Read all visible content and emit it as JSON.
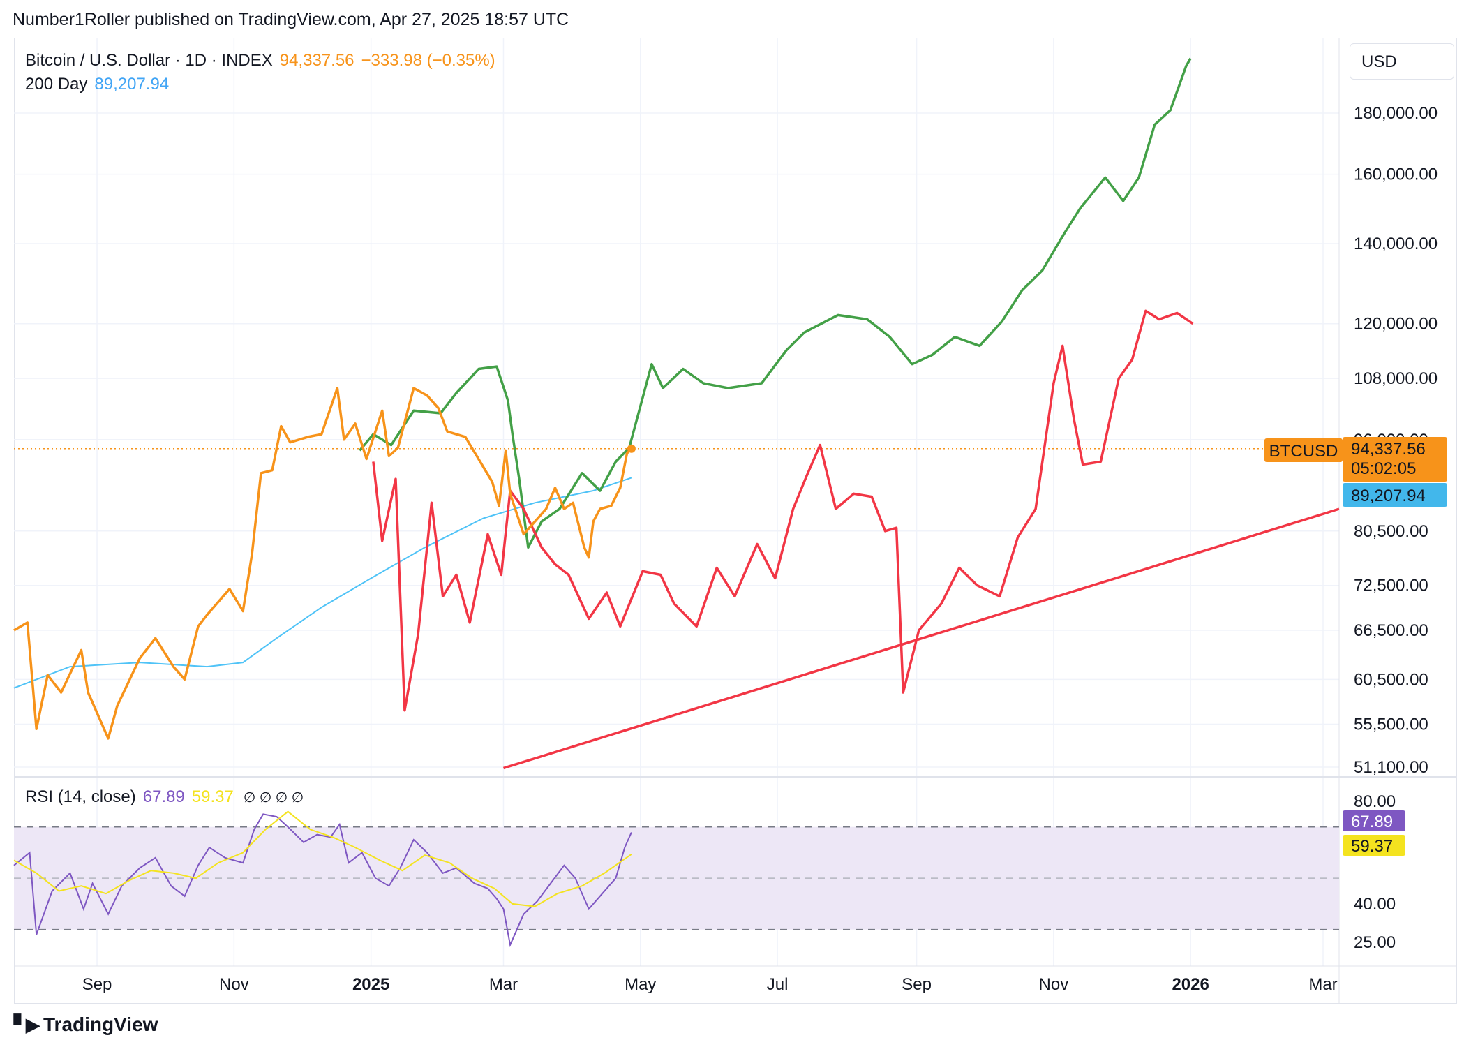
{
  "header": {
    "publisher": "Number1Roller published on TradingView.com, Apr 27, 2025 18:57 UTC"
  },
  "legend": {
    "symbol": "Bitcoin / U.S. Dollar · 1D · INDEX",
    "price": "94,337.56",
    "change": "−333.98 (−0.35%)",
    "ma_label": "200 Day",
    "ma_value": "89,207.94"
  },
  "currency": "USD",
  "price_badges": {
    "symbol": "BTCUSD",
    "price": "94,337.56",
    "countdown": "05:02:05",
    "ma": "89,207.94"
  },
  "rsi": {
    "label": "RSI (14, close)",
    "value": "67.89",
    "ma_value": "59.37",
    "icons": "∅ ∅ ∅ ∅"
  },
  "footer": {
    "brand": "TradingView"
  },
  "colors": {
    "btc_line": "#f7931a",
    "ma_line": "#4fc3f7",
    "projection_up": "#43a047",
    "projection_down": "#f23645",
    "trendline": "#f23645",
    "rsi_line": "#7e57c2",
    "rsi_ma": "#f4e31f",
    "rsi_band": "#ede7f6"
  },
  "chart_data": [
    {
      "type": "line",
      "scale": "log",
      "x_axis_ticks": [
        "Sep",
        "Nov",
        "2025",
        "Mar",
        "May",
        "Jul",
        "Sep",
        "Nov",
        "2026",
        "Mar"
      ],
      "y_axis_ticks": [
        "180,000.00",
        "160,000.00",
        "140,000.00",
        "120,000.00",
        "108,000.00",
        "96,000.00",
        "80,500.00",
        "72,500.00",
        "66,500.00",
        "60,500.00",
        "55,500.00",
        "51,100.00"
      ],
      "current_price": 94337.56,
      "series": [
        {
          "key": "btc",
          "x": [
            "2024-07-26",
            "2024-08-01",
            "2024-08-05",
            "2024-08-10",
            "2024-08-16",
            "2024-08-25",
            "2024-08-28",
            "2024-09-06",
            "2024-09-10",
            "2024-09-20",
            "2024-09-27",
            "2024-10-05",
            "2024-10-10",
            "2024-10-16",
            "2024-10-20",
            "2024-10-30",
            "2024-11-05",
            "2024-11-09",
            "2024-11-13",
            "2024-11-18",
            "2024-11-22",
            "2024-11-26",
            "2024-12-04",
            "2024-12-10",
            "2024-12-17",
            "2024-12-20",
            "2024-12-25",
            "2024-12-30",
            "2025-01-06",
            "2025-01-09",
            "2025-01-13",
            "2025-01-20",
            "2025-01-26",
            "2025-01-31",
            "2025-02-04",
            "2025-02-12",
            "2025-02-24",
            "2025-02-27",
            "2025-03-02",
            "2025-03-04",
            "2025-03-10",
            "2025-03-20",
            "2025-03-24",
            "2025-03-28",
            "2025-04-01",
            "2025-04-06",
            "2025-04-08",
            "2025-04-10",
            "2025-04-13",
            "2025-04-18",
            "2025-04-22",
            "2025-04-25",
            "2025-04-27"
          ],
          "y": [
            66500,
            67500,
            55000,
            61000,
            59000,
            64000,
            59000,
            54000,
            57500,
            63000,
            65500,
            62000,
            60500,
            67000,
            68500,
            72000,
            69000,
            77000,
            90000,
            90500,
            98500,
            95500,
            96500,
            97000,
            106000,
            96000,
            99000,
            92500,
            101500,
            93000,
            94500,
            106000,
            104500,
            102000,
            97500,
            96500,
            88500,
            84500,
            94000,
            86500,
            80000,
            84000,
            87500,
            84000,
            85000,
            78000,
            76500,
            82000,
            84000,
            84500,
            87500,
            93500,
            94337.56
          ]
        },
        {
          "key": "ma200",
          "x": [
            "2024-07-26",
            "2024-08-20",
            "2024-09-20",
            "2024-10-20",
            "2024-11-05",
            "2024-11-20",
            "2024-12-10",
            "2025-01-01",
            "2025-01-25",
            "2025-02-20",
            "2025-03-15",
            "2025-04-10",
            "2025-04-27"
          ],
          "y": [
            59500,
            62000,
            62500,
            62000,
            62500,
            65500,
            69500,
            73500,
            78000,
            82500,
            85000,
            87000,
            89207.94
          ]
        },
        {
          "key": "projection_bull",
          "x": [
            "2024-12-27",
            "2025-01-02",
            "2025-01-10",
            "2025-01-20",
            "2025-02-01",
            "2025-02-08",
            "2025-02-18",
            "2025-02-26",
            "2025-03-03",
            "2025-03-05",
            "2025-03-08",
            "2025-03-12",
            "2025-03-18",
            "2025-03-26",
            "2025-04-05",
            "2025-04-13",
            "2025-04-20",
            "2025-04-26",
            "2025-05-06",
            "2025-05-11",
            "2025-05-20",
            "2025-05-29",
            "2025-06-09",
            "2025-06-24",
            "2025-07-05",
            "2025-07-13",
            "2025-07-28",
            "2025-08-10",
            "2025-08-20",
            "2025-08-30",
            "2025-09-08",
            "2025-09-18",
            "2025-09-29",
            "2025-10-09",
            "2025-10-18",
            "2025-10-27",
            "2025-11-06",
            "2025-11-13",
            "2025-11-24",
            "2025-12-02",
            "2025-12-09",
            "2025-12-16",
            "2025-12-23",
            "2025-12-30",
            "2026-01-01"
          ],
          "y": [
            94000,
            97000,
            95000,
            101500,
            101000,
            105000,
            110000,
            110500,
            103500,
            97000,
            89000,
            78000,
            82000,
            84000,
            90000,
            87000,
            92000,
            94500,
            111000,
            106000,
            110000,
            107000,
            106000,
            107000,
            114000,
            118000,
            122000,
            121000,
            117000,
            111000,
            113000,
            117000,
            115000,
            120500,
            128000,
            133000,
            143000,
            150000,
            159000,
            152000,
            159000,
            176000,
            181000,
            197000,
            200000
          ]
        },
        {
          "key": "projection_bear",
          "x": [
            "2025-01-02",
            "2025-01-06",
            "2025-01-12",
            "2025-01-16",
            "2025-01-22",
            "2025-01-28",
            "2025-02-02",
            "2025-02-08",
            "2025-02-14",
            "2025-02-22",
            "2025-02-28",
            "2025-03-04",
            "2025-03-10",
            "2025-03-18",
            "2025-03-24",
            "2025-03-30",
            "2025-04-08",
            "2025-04-16",
            "2025-04-22",
            "2025-05-02",
            "2025-05-10",
            "2025-05-16",
            "2025-05-26",
            "2025-06-04",
            "2025-06-12",
            "2025-06-22",
            "2025-06-30",
            "2025-07-08",
            "2025-07-14",
            "2025-07-20",
            "2025-07-27",
            "2025-08-04",
            "2025-08-12",
            "2025-08-18",
            "2025-08-23",
            "2025-08-26",
            "2025-09-02",
            "2025-09-12",
            "2025-09-20",
            "2025-09-28",
            "2025-10-08",
            "2025-10-16",
            "2025-10-24",
            "2025-11-01",
            "2025-11-05",
            "2025-11-10",
            "2025-11-14",
            "2025-11-22",
            "2025-11-30",
            "2025-12-06",
            "2025-12-12",
            "2025-12-18",
            "2025-12-26",
            "2026-01-02"
          ],
          "y": [
            92000,
            79000,
            89000,
            57000,
            66000,
            85000,
            71000,
            74000,
            67500,
            80000,
            74000,
            87000,
            84000,
            78000,
            75500,
            74000,
            68000,
            71500,
            67000,
            74500,
            74000,
            70000,
            67000,
            75000,
            71000,
            78500,
            73500,
            84000,
            89500,
            95000,
            84000,
            86500,
            86000,
            80500,
            81000,
            59000,
            66500,
            70000,
            75000,
            72500,
            71000,
            79500,
            84000,
            107000,
            115000,
            100000,
            91500,
            92000,
            108000,
            112000,
            123000,
            121000,
            122500,
            120000
          ]
        }
      ],
      "trendline": {
        "x": [
          "2025-03-01",
          "2026-03-31"
        ],
        "y": [
          51000,
          84000
        ]
      }
    },
    {
      "type": "line",
      "title": "RSI (14, close)",
      "y_axis_ticks": [
        "80.00",
        "40.00",
        "25.00"
      ],
      "band": [
        30,
        70
      ],
      "mid": 50,
      "series": [
        {
          "key": "rsi",
          "x": [
            "2024-07-26",
            "2024-08-02",
            "2024-08-05",
            "2024-08-12",
            "2024-08-20",
            "2024-08-26",
            "2024-08-30",
            "2024-09-06",
            "2024-09-12",
            "2024-09-20",
            "2024-09-27",
            "2024-10-04",
            "2024-10-10",
            "2024-10-16",
            "2024-10-21",
            "2024-10-28",
            "2024-11-05",
            "2024-11-10",
            "2024-11-14",
            "2024-11-20",
            "2024-11-25",
            "2024-12-02",
            "2024-12-08",
            "2024-12-14",
            "2024-12-18",
            "2024-12-22",
            "2024-12-28",
            "2025-01-03",
            "2025-01-09",
            "2025-01-14",
            "2025-01-20",
            "2025-01-26",
            "2025-02-02",
            "2025-02-08",
            "2025-02-16",
            "2025-02-22",
            "2025-02-26",
            "2025-03-01",
            "2025-03-04",
            "2025-03-10",
            "2025-03-16",
            "2025-03-22",
            "2025-03-28",
            "2025-04-02",
            "2025-04-08",
            "2025-04-14",
            "2025-04-20",
            "2025-04-24",
            "2025-04-27"
          ],
          "y": [
            55,
            60,
            28,
            45,
            52,
            38,
            48,
            36,
            47,
            54,
            58,
            47,
            43,
            55,
            62,
            58,
            56,
            69,
            75,
            74,
            70,
            64,
            67,
            66,
            71,
            56,
            60,
            50,
            47,
            54,
            65,
            60,
            52,
            54,
            48,
            46,
            42,
            38,
            24,
            36,
            41,
            48,
            55,
            50,
            38,
            44,
            50,
            62,
            67.89
          ]
        },
        {
          "key": "rsi_ma",
          "x": [
            "2024-07-26",
            "2024-08-05",
            "2024-08-15",
            "2024-08-25",
            "2024-09-05",
            "2024-09-15",
            "2024-09-25",
            "2024-10-05",
            "2024-10-15",
            "2024-10-25",
            "2024-11-05",
            "2024-11-15",
            "2024-11-25",
            "2024-12-05",
            "2024-12-15",
            "2024-12-25",
            "2025-01-05",
            "2025-01-15",
            "2025-01-25",
            "2025-02-05",
            "2025-02-15",
            "2025-02-25",
            "2025-03-05",
            "2025-03-15",
            "2025-03-25",
            "2025-04-05",
            "2025-04-15",
            "2025-04-27"
          ],
          "y": [
            57,
            52,
            45,
            47,
            44,
            49,
            53,
            52,
            50,
            56,
            60,
            69,
            76,
            69,
            66,
            62,
            57,
            53,
            59,
            56,
            50,
            46,
            40,
            39,
            44,
            47,
            52,
            59.37
          ]
        }
      ]
    }
  ]
}
